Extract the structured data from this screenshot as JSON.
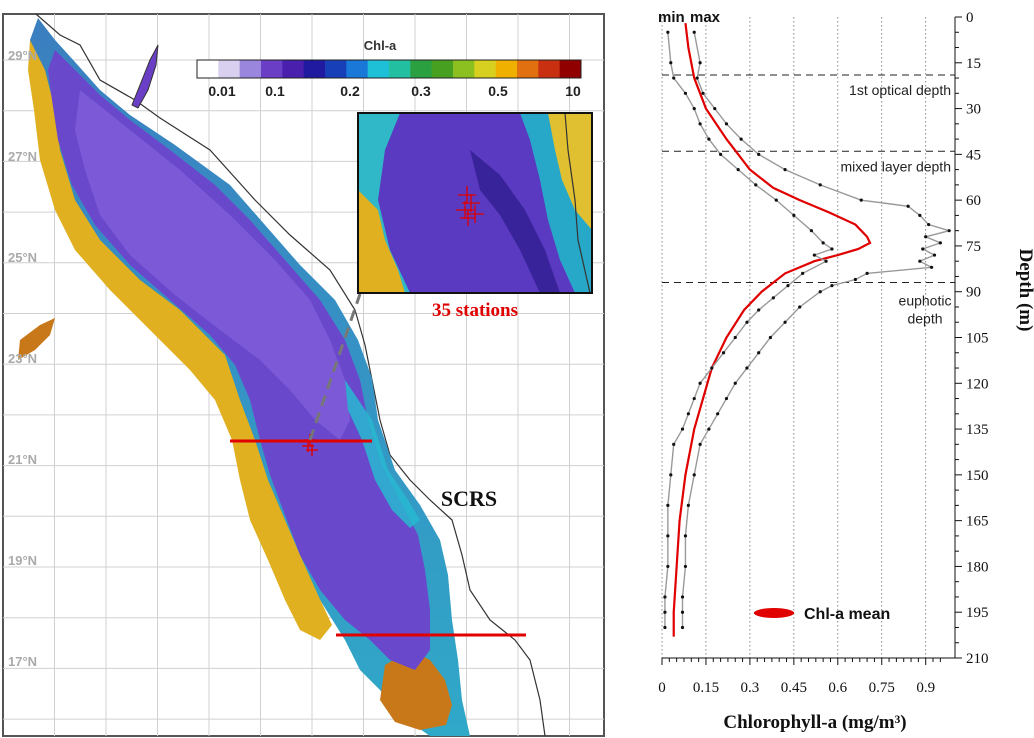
{
  "map": {
    "lat_labels": [
      "29°N",
      "27°N",
      "25°N",
      "23°N",
      "21°N",
      "19°N",
      "17°N"
    ],
    "colorbar_title": "Chl-a",
    "colorbar_ticks": [
      "0.01",
      "0.1",
      "0.2",
      "0.3",
      "0.5",
      "10"
    ],
    "colorbar_colors": [
      "#ffffff",
      "#d8d0ee",
      "#9a86dc",
      "#6a3fc6",
      "#4b1fae",
      "#1f1aa0",
      "#1740b8",
      "#1a78d8",
      "#1ec0d8",
      "#22c0a0",
      "#2aa040",
      "#48a020",
      "#8cc020",
      "#d8d020",
      "#f0b000",
      "#e07010",
      "#c83010",
      "#900000"
    ],
    "inset_label": "35 stations",
    "region_label": "SCRS",
    "section_color": "#e00000"
  },
  "chart_data": {
    "type": "line",
    "title": "",
    "xlabel": "Chlorophyll-a (mg/m³)",
    "ylabel": "Depth (m)",
    "xlim": [
      0,
      1.0
    ],
    "ylim": [
      210,
      0
    ],
    "x_ticks": [
      "0",
      "0.15",
      "0.3",
      "0.45",
      "0.6",
      "0.75",
      "0.9"
    ],
    "y_ticks": [
      "0",
      "15",
      "30",
      "45",
      "60",
      "75",
      "90",
      "105",
      "120",
      "135",
      "150",
      "165",
      "180",
      "195",
      "210"
    ],
    "grid": "vertical dotted at x ticks",
    "depth_lines": [
      {
        "label": "1st optical depth",
        "depth": 19
      },
      {
        "label": "mixed layer depth",
        "depth": 44
      },
      {
        "label": "euphotic depth",
        "depth": 87
      }
    ],
    "top_labels": [
      "min",
      "max"
    ],
    "legend": {
      "label": "Chl-a mean",
      "position": "bottom-right"
    },
    "series": [
      {
        "name": "Chl-a mean",
        "color": "#e00000",
        "depth": [
          2,
          10,
          20,
          30,
          40,
          50,
          56,
          60,
          64,
          68,
          72,
          74,
          76,
          78,
          80,
          84,
          90,
          96,
          105,
          115,
          125,
          135,
          150,
          165,
          180,
          195,
          203
        ],
        "values": [
          0.08,
          0.09,
          0.11,
          0.15,
          0.22,
          0.3,
          0.38,
          0.47,
          0.57,
          0.66,
          0.7,
          0.71,
          0.67,
          0.6,
          0.52,
          0.42,
          0.34,
          0.28,
          0.22,
          0.17,
          0.14,
          0.11,
          0.08,
          0.06,
          0.05,
          0.04,
          0.04
        ]
      },
      {
        "name": "min",
        "color": "#999999",
        "depth": [
          5,
          15,
          20,
          25,
          30,
          35,
          40,
          45,
          50,
          55,
          60,
          65,
          70,
          74,
          76,
          78,
          80,
          84,
          88,
          92,
          96,
          100,
          105,
          110,
          115,
          120,
          125,
          130,
          135,
          140,
          150,
          160,
          170,
          180,
          190,
          195,
          200
        ],
        "values": [
          0.02,
          0.03,
          0.04,
          0.08,
          0.11,
          0.13,
          0.16,
          0.2,
          0.26,
          0.32,
          0.39,
          0.45,
          0.51,
          0.55,
          0.58,
          0.52,
          0.56,
          0.48,
          0.43,
          0.38,
          0.33,
          0.29,
          0.25,
          0.21,
          0.17,
          0.13,
          0.11,
          0.09,
          0.07,
          0.04,
          0.03,
          0.02,
          0.02,
          0.02,
          0.01,
          0.01,
          0.01
        ]
      },
      {
        "name": "max",
        "color": "#999999",
        "depth": [
          5,
          15,
          20,
          25,
          30,
          35,
          40,
          45,
          50,
          55,
          60,
          62,
          65,
          68,
          70,
          72,
          74,
          76,
          78,
          80,
          82,
          84,
          86,
          88,
          90,
          95,
          100,
          105,
          110,
          115,
          120,
          125,
          130,
          135,
          140,
          150,
          160,
          170,
          180,
          190,
          195,
          200
        ],
        "values": [
          0.11,
          0.13,
          0.12,
          0.14,
          0.18,
          0.22,
          0.27,
          0.33,
          0.42,
          0.54,
          0.68,
          0.84,
          0.88,
          0.91,
          0.98,
          0.9,
          0.95,
          0.89,
          0.93,
          0.88,
          0.92,
          0.7,
          0.66,
          0.58,
          0.54,
          0.47,
          0.42,
          0.37,
          0.33,
          0.29,
          0.25,
          0.22,
          0.19,
          0.16,
          0.13,
          0.11,
          0.09,
          0.08,
          0.08,
          0.07,
          0.07,
          0.07
        ]
      }
    ]
  }
}
